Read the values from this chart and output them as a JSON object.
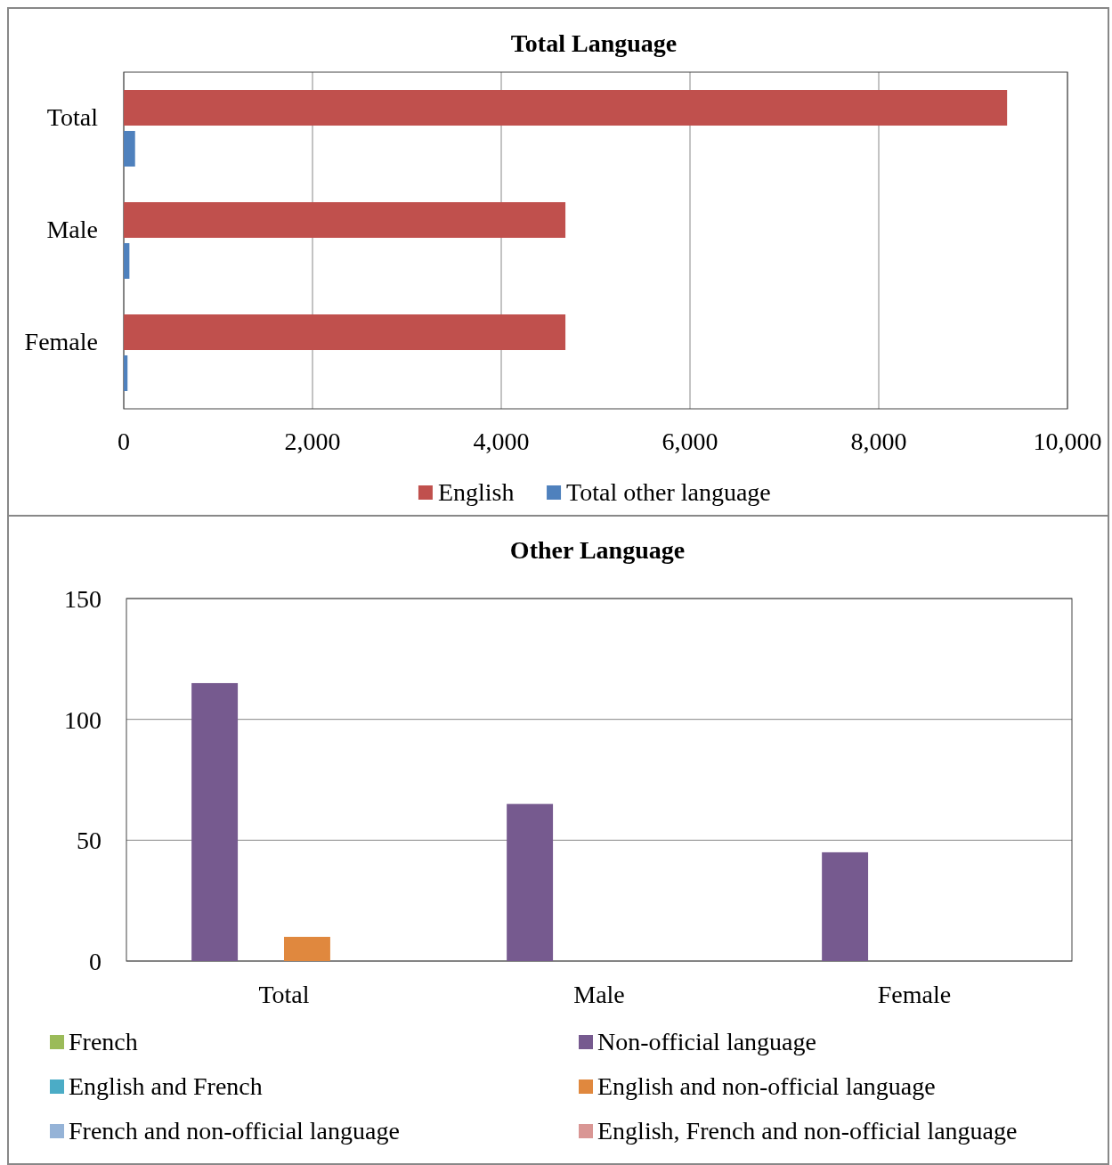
{
  "chart_data": [
    {
      "type": "bar",
      "title": "Total Language",
      "orientation": "horizontal",
      "categories": [
        "Total",
        "Male",
        "Female"
      ],
      "series": [
        {
          "name": "English",
          "color": "#c0504d",
          "values": [
            9360,
            4680,
            4680
          ]
        },
        {
          "name": "Total other language",
          "color": "#4f81bd",
          "values": [
            120,
            60,
            40
          ]
        }
      ],
      "xlim": [
        0,
        10000
      ],
      "xticks": [
        0,
        {
          "value": 2000,
          "label": "2,000"
        },
        {
          "value": 4000,
          "label": "4,000"
        },
        {
          "value": 6000,
          "label": "6,000"
        },
        {
          "value": 8000,
          "label": "8,000"
        },
        {
          "value": 10000,
          "label": "10,000"
        }
      ],
      "grid": "x",
      "legend": "bottom"
    },
    {
      "type": "bar",
      "title": "Other Language",
      "categories": [
        "Total",
        "Male",
        "Female"
      ],
      "series": [
        {
          "name": "French",
          "color": "#9bbb59",
          "values": [
            0,
            0,
            0
          ]
        },
        {
          "name": "Non-official language",
          "color": "#765a8f",
          "values": [
            115,
            65,
            45
          ]
        },
        {
          "name": "English and French",
          "color": "#4bacc6",
          "values": [
            0,
            0,
            0
          ]
        },
        {
          "name": "English and non-official language",
          "color": "#e0883e",
          "values": [
            10,
            0,
            0
          ]
        },
        {
          "name": "French and non-official language",
          "color": "#95b3d7",
          "values": [
            0,
            0,
            0
          ]
        },
        {
          "name": "English, French and non-official language",
          "color": "#d99694",
          "values": [
            0,
            0,
            0
          ]
        }
      ],
      "ylim": [
        0,
        150
      ],
      "yticks": [
        0,
        50,
        100,
        150
      ],
      "grid": "y",
      "legend": "bottom"
    }
  ]
}
